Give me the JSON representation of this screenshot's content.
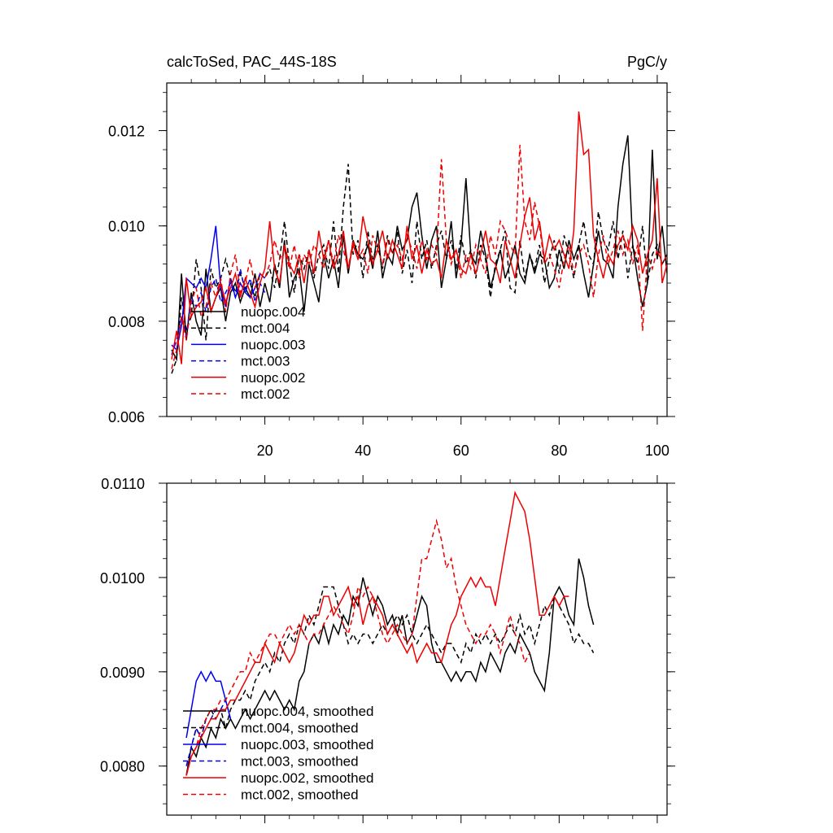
{
  "chart_data": [
    {
      "type": "line",
      "title": "calcToSed, PAC_44S-18S",
      "units": "PgC/y",
      "xlabel": "",
      "ylabel": "",
      "xlim": [
        0,
        102
      ],
      "ylim": [
        0.006,
        0.013
      ],
      "xticks": [
        20,
        40,
        60,
        80,
        100
      ],
      "xtick_labels": [
        "20",
        "40",
        "60",
        "80",
        "100"
      ],
      "yticks": [
        0.006,
        0.008,
        0.01,
        0.012
      ],
      "ytick_labels": [
        "0.006",
        "0.008",
        "0.010",
        "0.012"
      ],
      "legend_position": "lower-left",
      "series": [
        {
          "name": "nuopc.004",
          "color": "#000000",
          "dash": "solid",
          "x_start": 1,
          "values": [
            0.0074,
            0.0072,
            0.009,
            0.0076,
            0.0086,
            0.008,
            0.0077,
            0.0091,
            0.0082,
            0.0085,
            0.0087,
            0.008,
            0.0086,
            0.0088,
            0.0084,
            0.0087,
            0.0085,
            0.009,
            0.0083,
            0.0088,
            0.0084,
            0.0092,
            0.0087,
            0.0097,
            0.0085,
            0.0089,
            0.0091,
            0.0082,
            0.0092,
            0.0088,
            0.0084,
            0.0094,
            0.0089,
            0.0093,
            0.0087,
            0.0098,
            0.009,
            0.0097,
            0.0094,
            0.0093,
            0.0096,
            0.0091,
            0.0099,
            0.0089,
            0.0094,
            0.0092,
            0.01,
            0.0095,
            0.0097,
            0.0104,
            0.0107,
            0.0098,
            0.0091,
            0.0097,
            0.01,
            0.0087,
            0.0093,
            0.0101,
            0.0089,
            0.0096,
            0.011,
            0.0094,
            0.0092,
            0.0099,
            0.0094,
            0.0087,
            0.0091,
            0.0095,
            0.0089,
            0.0092,
            0.0096,
            0.009,
            0.0088,
            0.0094,
            0.009,
            0.0094,
            0.0093,
            0.0087,
            0.0089,
            0.0095,
            0.0091,
            0.0097,
            0.0093,
            0.0096,
            0.009,
            0.0085,
            0.0092,
            0.0099,
            0.0093,
            0.0092,
            0.0089,
            0.0104,
            0.0113,
            0.0119,
            0.0096,
            0.0089,
            0.0083,
            0.0088,
            0.0116,
            0.0093,
            0.01,
            0.009
          ]
        },
        {
          "name": "mct.004",
          "color": "#000000",
          "dash": "dashed",
          "x_start": 1,
          "values": [
            0.0069,
            0.0072,
            0.0085,
            0.0078,
            0.0081,
            0.0093,
            0.0087,
            0.0076,
            0.0091,
            0.0087,
            0.0089,
            0.0093,
            0.0089,
            0.0086,
            0.009,
            0.0087,
            0.0088,
            0.0085,
            0.009,
            0.0089,
            0.0091,
            0.0087,
            0.0093,
            0.0101,
            0.0092,
            0.0086,
            0.0094,
            0.0091,
            0.0095,
            0.0089,
            0.0094,
            0.0096,
            0.0091,
            0.0101,
            0.009,
            0.0104,
            0.0113,
            0.0094,
            0.0097,
            0.0089,
            0.0099,
            0.0093,
            0.0096,
            0.0091,
            0.0098,
            0.0094,
            0.0099,
            0.009,
            0.0095,
            0.0088,
            0.0101,
            0.0093,
            0.0097,
            0.0091,
            0.0096,
            0.0099,
            0.0093,
            0.0097,
            0.0091,
            0.0098,
            0.0092,
            0.0095,
            0.0089,
            0.0096,
            0.0093,
            0.0085,
            0.0092,
            0.0095,
            0.0099,
            0.0087,
            0.0086,
            0.0097,
            0.0089,
            0.0094,
            0.0091,
            0.0096,
            0.0088,
            0.0093,
            0.0097,
            0.009,
            0.0098,
            0.0094,
            0.0089,
            0.0096,
            0.0101,
            0.0094,
            0.0092,
            0.0103,
            0.0097,
            0.0095,
            0.0101,
            0.0093,
            0.0099,
            0.0089,
            0.0096,
            0.0092,
            0.01,
            0.0088,
            0.0094,
            0.0096,
            0.0092,
            0.0094
          ]
        },
        {
          "name": "nuopc.003",
          "color": "#0000ee",
          "dash": "solid",
          "x_start": 1,
          "values": [
            0.0075,
            0.0074,
            0.0079,
            0.0089,
            0.0088,
            0.0087,
            0.0089,
            0.0087,
            0.0093,
            0.01,
            0.0087,
            0.0083,
            0.0089,
            0.0085,
            0.0088,
            0.0086,
            0.0085,
            0.0087,
            0.009,
            0.0089
          ]
        },
        {
          "name": "mct.003",
          "color": "#0000ee",
          "dash": "dashed",
          "x_start": 1,
          "values": [
            0.0073,
            0.0076,
            0.0081,
            0.0077,
            0.0085,
            0.0083,
            0.0086,
            0.0082,
            0.0087,
            0.0089,
            0.0084,
            0.0086,
            0.0088,
            0.0085,
            0.0091,
            0.0086,
            0.0089,
            0.0084,
            0.0088,
            0.0086
          ]
        },
        {
          "name": "nuopc.002",
          "color": "#ee0000",
          "dash": "solid",
          "x_start": 1,
          "values": [
            0.0072,
            0.0078,
            0.0071,
            0.0089,
            0.0081,
            0.0083,
            0.0084,
            0.0087,
            0.0082,
            0.0085,
            0.0088,
            0.0084,
            0.0087,
            0.009,
            0.0085,
            0.0089,
            0.0086,
            0.0083,
            0.0088,
            0.0091,
            0.0101,
            0.0091,
            0.0088,
            0.0096,
            0.0092,
            0.009,
            0.0094,
            0.0088,
            0.0095,
            0.009,
            0.0099,
            0.0093,
            0.0097,
            0.0091,
            0.0094,
            0.0099,
            0.0091,
            0.0096,
            0.0093,
            0.0102,
            0.0097,
            0.0092,
            0.0095,
            0.0099,
            0.0093,
            0.0097,
            0.0094,
            0.0091,
            0.01,
            0.0093,
            0.0096,
            0.009,
            0.0095,
            0.0092,
            0.0093,
            0.0089,
            0.0097,
            0.0093,
            0.0095,
            0.0091,
            0.009,
            0.0094,
            0.009,
            0.0094,
            0.0099,
            0.0093,
            0.0092,
            0.0088,
            0.0097,
            0.0093,
            0.0089,
            0.0096,
            0.0102,
            0.0106,
            0.0097,
            0.0101,
            0.0093,
            0.0098,
            0.0095,
            0.0097,
            0.0094,
            0.0091,
            0.0099,
            0.0124,
            0.0115,
            0.0116,
            0.0098,
            0.0093,
            0.0089,
            0.0094,
            0.0092,
            0.0096,
            0.0098,
            0.0095,
            0.01,
            0.0097,
            0.009,
            0.0094,
            0.0097,
            0.011,
            0.0088,
            0.0092
          ]
        },
        {
          "name": "mct.002",
          "color": "#ee0000",
          "dash": "dashed",
          "x_start": 1,
          "values": [
            0.007,
            0.0074,
            0.0081,
            0.0076,
            0.0084,
            0.0087,
            0.0081,
            0.0083,
            0.0088,
            0.0085,
            0.0089,
            0.0082,
            0.009,
            0.0094,
            0.0086,
            0.0088,
            0.0093,
            0.0087,
            0.009,
            0.0089,
            0.0092,
            0.0097,
            0.0093,
            0.0095,
            0.0091,
            0.0096,
            0.0089,
            0.0094,
            0.0092,
            0.0096,
            0.0094,
            0.0091,
            0.0097,
            0.0092,
            0.0098,
            0.0095,
            0.0091,
            0.0097,
            0.0093,
            0.0095,
            0.009,
            0.0098,
            0.0095,
            0.0092,
            0.0097,
            0.0094,
            0.0096,
            0.0093,
            0.0098,
            0.0095,
            0.0091,
            0.0097,
            0.0093,
            0.0096,
            0.0094,
            0.0114,
            0.0097,
            0.0092,
            0.0095,
            0.0089,
            0.0094,
            0.0091,
            0.0096,
            0.0093,
            0.009,
            0.0098,
            0.0094,
            0.0101,
            0.0099,
            0.0096,
            0.0094,
            0.0117,
            0.0101,
            0.0097,
            0.0105,
            0.01,
            0.0092,
            0.0094,
            0.0091,
            0.0087,
            0.0093,
            0.0096,
            0.009,
            0.0094,
            0.0096,
            0.0092,
            0.0085,
            0.0094,
            0.0098,
            0.0092,
            0.0095,
            0.0099,
            0.0094,
            0.0097,
            0.0092,
            0.0096,
            0.0078,
            0.0094,
            0.0091,
            0.0095,
            0.0092,
            0.0094
          ]
        }
      ]
    },
    {
      "type": "line",
      "title": "",
      "xlabel": "",
      "ylabel": "",
      "xlim": [
        0,
        102
      ],
      "ylim": [
        0.00748,
        0.011
      ],
      "xticks": [
        20,
        40,
        60,
        80,
        100
      ],
      "xtick_labels": [],
      "yticks": [
        0.008,
        0.009,
        0.01,
        0.011
      ],
      "ytick_labels": [
        "0.0080",
        "0.0090",
        "0.0100",
        "0.0110"
      ],
      "legend_position": "lower-left",
      "series": [
        {
          "name": "nuopc.004, smoothed",
          "color": "#000000",
          "dash": "solid",
          "x_start": 4,
          "values": [
            0.0079,
            0.0082,
            0.0081,
            0.0083,
            0.0082,
            0.0084,
            0.0083,
            0.0085,
            0.0084,
            0.0085,
            0.0084,
            0.0085,
            0.0086,
            0.0085,
            0.0086,
            0.0087,
            0.0088,
            0.0087,
            0.0088,
            0.0087,
            0.0086,
            0.0087,
            0.0086,
            0.0089,
            0.009,
            0.0093,
            0.0094,
            0.0093,
            0.0095,
            0.0093,
            0.0095,
            0.0094,
            0.0096,
            0.0095,
            0.0098,
            0.0097,
            0.01,
            0.0098,
            0.0096,
            0.0098,
            0.0097,
            0.0095,
            0.0096,
            0.0094,
            0.0096,
            0.0093,
            0.0094,
            0.0096,
            0.0098,
            0.0097,
            0.0093,
            0.0091,
            0.0091,
            0.009,
            0.0089,
            0.009,
            0.0089,
            0.009,
            0.009,
            0.0089,
            0.0091,
            0.009,
            0.0092,
            0.0091,
            0.009,
            0.0092,
            0.0093,
            0.0092,
            0.0094,
            0.0093,
            0.0092,
            0.009,
            0.0089,
            0.0088,
            0.0092,
            0.0098,
            0.0099,
            0.0098,
            0.0096,
            0.0095,
            0.0102,
            0.01,
            0.0097,
            0.0095
          ]
        },
        {
          "name": "mct.004, smoothed",
          "color": "#000000",
          "dash": "dashed",
          "x_start": 4,
          "values": [
            0.0079,
            0.0082,
            0.0084,
            0.0083,
            0.0085,
            0.0086,
            0.0085,
            0.0086,
            0.0084,
            0.0086,
            0.0087,
            0.0087,
            0.0088,
            0.0087,
            0.0089,
            0.009,
            0.0091,
            0.009,
            0.0092,
            0.0091,
            0.0093,
            0.0094,
            0.0093,
            0.0095,
            0.0094,
            0.0096,
            0.0095,
            0.0097,
            0.0099,
            0.0099,
            0.0099,
            0.0097,
            0.0095,
            0.0093,
            0.0094,
            0.0093,
            0.0094,
            0.0094,
            0.0093,
            0.0094,
            0.0095,
            0.0094,
            0.0095,
            0.0096,
            0.0095,
            0.0096,
            0.0094,
            0.0093,
            0.0094,
            0.0095,
            0.0094,
            0.0093,
            0.0092,
            0.0093,
            0.0093,
            0.0092,
            0.0091,
            0.0093,
            0.0092,
            0.0094,
            0.0093,
            0.0094,
            0.0093,
            0.0094,
            0.0093,
            0.0094,
            0.0095,
            0.0094,
            0.0096,
            0.0094,
            0.0095,
            0.0093,
            0.0095,
            0.0097,
            0.0096,
            0.0098,
            0.0097,
            0.0096,
            0.0095,
            0.0093,
            0.0094,
            0.0093,
            0.0093,
            0.0092
          ]
        },
        {
          "name": "nuopc.003, smoothed",
          "color": "#0000ee",
          "dash": "solid",
          "x_start": 4,
          "values": [
            0.0083,
            0.0086,
            0.0089,
            0.009,
            0.0089,
            0.009,
            0.0089,
            0.0089,
            0.0087,
            0.0085
          ]
        },
        {
          "name": "mct.003, smoothed",
          "color": "#0000ee",
          "dash": "dashed",
          "x_start": 4,
          "values": [
            0.008,
            0.0082,
            0.0084,
            0.0083,
            0.0085,
            0.0085,
            0.0086,
            0.0086,
            0.0087,
            0.0085
          ]
        },
        {
          "name": "nuopc.002, smoothed",
          "color": "#ee0000",
          "dash": "solid",
          "x_start": 4,
          "values": [
            0.0079,
            0.0081,
            0.0082,
            0.0083,
            0.0084,
            0.0085,
            0.0085,
            0.0086,
            0.0086,
            0.0087,
            0.0087,
            0.0088,
            0.0089,
            0.009,
            0.0091,
            0.0091,
            0.0093,
            0.0092,
            0.0091,
            0.0093,
            0.0092,
            0.0091,
            0.0092,
            0.0094,
            0.0096,
            0.0095,
            0.0096,
            0.0096,
            0.0098,
            0.0098,
            0.0096,
            0.0097,
            0.0098,
            0.0099,
            0.0097,
            0.0098,
            0.0095,
            0.0097,
            0.0098,
            0.0097,
            0.0096,
            0.0094,
            0.0095,
            0.0094,
            0.0093,
            0.0092,
            0.0093,
            0.0091,
            0.0092,
            0.0093,
            0.0092,
            0.0092,
            0.0091,
            0.0093,
            0.0095,
            0.0096,
            0.0098,
            0.0099,
            0.01,
            0.0099,
            0.01,
            0.0099,
            0.0099,
            0.0097,
            0.01,
            0.0103,
            0.0106,
            0.0109,
            0.0108,
            0.0107,
            0.0104,
            0.01,
            0.0096,
            0.0096,
            0.0097,
            0.0098,
            0.0097,
            0.0098,
            0.0098
          ]
        },
        {
          "name": "mct.002, smoothed",
          "color": "#ee0000",
          "dash": "dashed",
          "x_start": 4,
          "values": [
            0.0079,
            0.0081,
            0.0082,
            0.0084,
            0.0085,
            0.0086,
            0.0086,
            0.0087,
            0.0087,
            0.0088,
            0.0089,
            0.009,
            0.009,
            0.0092,
            0.0091,
            0.0092,
            0.0093,
            0.0094,
            0.0094,
            0.0093,
            0.0094,
            0.0095,
            0.0094,
            0.0095,
            0.0094,
            0.0093,
            0.0094,
            0.0094,
            0.0095,
            0.0096,
            0.0097,
            0.0096,
            0.0095,
            0.0094,
            0.0096,
            0.0099,
            0.0098,
            0.0099,
            0.0098,
            0.0096,
            0.0094,
            0.0093,
            0.0094,
            0.0095,
            0.0094,
            0.0093,
            0.0094,
            0.0098,
            0.0102,
            0.0102,
            0.0104,
            0.0106,
            0.0104,
            0.0101,
            0.0102,
            0.0099,
            0.0097,
            0.0095,
            0.0094,
            0.0093,
            0.0094,
            0.0094,
            0.0095,
            0.0094,
            0.0092,
            0.0094,
            0.0096,
            0.0094,
            0.0093,
            0.0091,
            0.0092
          ]
        }
      ]
    }
  ]
}
